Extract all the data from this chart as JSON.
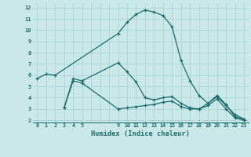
{
  "xlabel": "Humidex (Indice chaleur)",
  "background_color": "#cbe8e8",
  "grid_color": "#aad4d4",
  "line_color": "#1a6b6b",
  "xlim": [
    -0.5,
    23.5
  ],
  "ylim": [
    1.8,
    12.4
  ],
  "yticks": [
    2,
    3,
    4,
    5,
    6,
    7,
    8,
    9,
    10,
    11,
    12
  ],
  "xtick_positions": [
    0,
    1,
    2,
    3,
    4,
    5,
    9,
    10,
    11,
    12,
    13,
    14,
    15,
    16,
    17,
    18,
    19,
    20,
    21,
    22,
    23
  ],
  "xtick_labels": [
    "0",
    "1",
    "2",
    "3",
    "4",
    "5",
    "9",
    "10",
    "11",
    "12",
    "13",
    "14",
    "15",
    "16",
    "17",
    "18",
    "19",
    "20",
    "21",
    "22",
    "23"
  ],
  "series": [
    {
      "x": [
        0,
        1,
        2,
        9,
        10,
        11,
        12,
        13,
        14,
        15,
        16,
        17,
        18,
        19,
        20,
        21,
        22,
        23
      ],
      "y": [
        5.7,
        6.1,
        6.0,
        9.7,
        10.7,
        11.4,
        11.8,
        11.6,
        11.3,
        10.3,
        7.3,
        5.5,
        4.2,
        3.5,
        4.2,
        3.4,
        2.3,
        2.1
      ]
    },
    {
      "x": [
        3,
        4,
        5,
        9,
        10,
        11,
        12,
        13,
        14,
        15,
        16,
        17,
        18,
        19,
        20,
        21,
        22,
        23
      ],
      "y": [
        3.1,
        5.7,
        5.5,
        7.1,
        6.3,
        5.4,
        4.0,
        3.8,
        4.0,
        4.1,
        3.5,
        3.1,
        3.0,
        3.5,
        4.1,
        3.3,
        2.5,
        2.1
      ]
    },
    {
      "x": [
        3,
        4,
        5,
        9,
        10,
        11,
        12,
        13,
        14,
        15,
        16,
        17,
        18,
        19,
        20,
        21,
        22,
        23
      ],
      "y": [
        3.1,
        5.5,
        5.3,
        3.0,
        3.1,
        3.2,
        3.3,
        3.4,
        3.6,
        3.7,
        3.2,
        3.0,
        3.0,
        3.3,
        3.9,
        3.0,
        2.2,
        2.0
      ]
    }
  ]
}
